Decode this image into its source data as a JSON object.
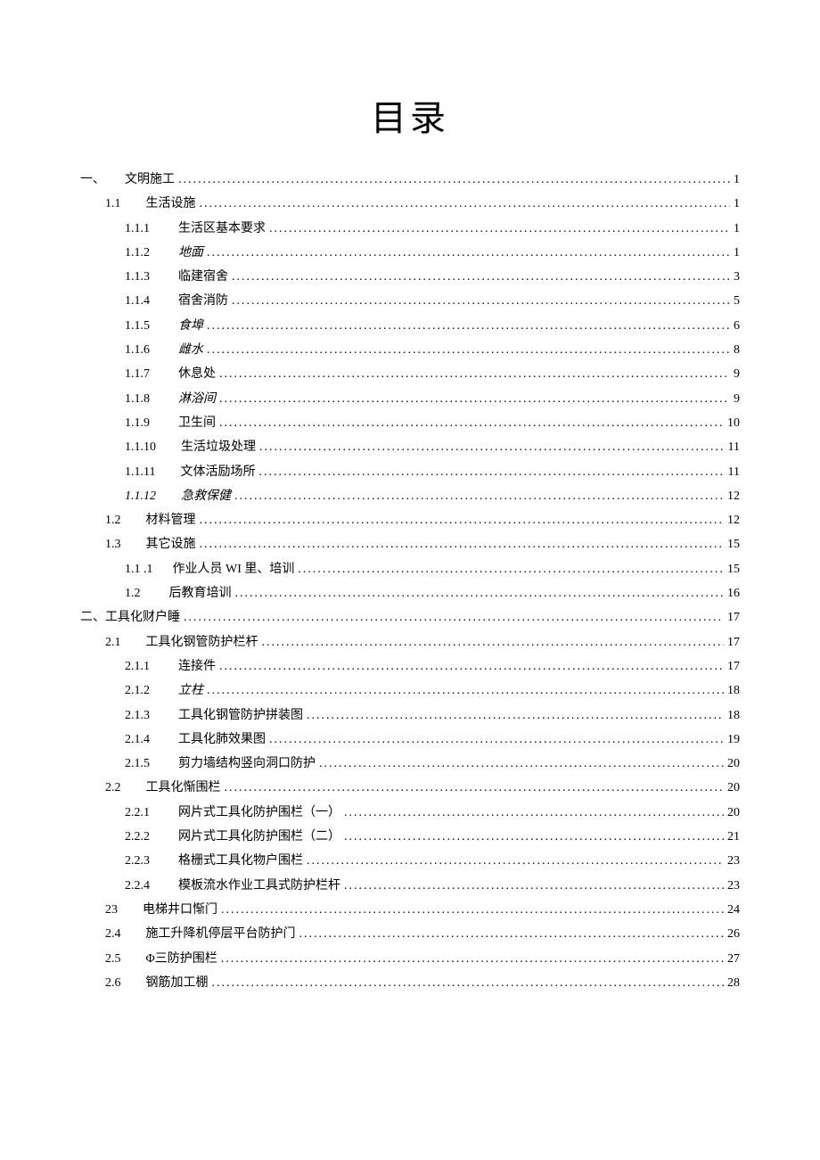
{
  "title": "目录",
  "dots": "...................................................................................................................................................",
  "entries": [
    {
      "indent": 0,
      "num": "一、",
      "numGap": "sm",
      "text": "文明施工",
      "page": "1",
      "italic": false,
      "textItalic": false
    },
    {
      "indent": 1,
      "num": "1.1",
      "numGap": "md",
      "text": "生活设施",
      "page": "1",
      "italic": false,
      "textItalic": false
    },
    {
      "indent": 2,
      "num": "1.1.1",
      "numGap": "lg",
      "text": "生活区基本要求",
      "page": "1",
      "italic": false,
      "textItalic": false
    },
    {
      "indent": 2,
      "num": "1.1.2",
      "numGap": "lg",
      "text": "地面",
      "page": "1",
      "italic": false,
      "textItalic": true
    },
    {
      "indent": 2,
      "num": "1.1.3",
      "numGap": "lg",
      "text": "临建宿舍",
      "page": "3",
      "italic": false,
      "textItalic": false
    },
    {
      "indent": 2,
      "num": "1.1.4",
      "numGap": "lg",
      "text": "宿舍消防",
      "page": "5",
      "italic": false,
      "textItalic": false
    },
    {
      "indent": 2,
      "num": "1.1.5",
      "numGap": "lg",
      "text": "食埠",
      "page": "6",
      "italic": false,
      "textItalic": true
    },
    {
      "indent": 2,
      "num": "1.1.6",
      "numGap": "lg",
      "text": "雌水",
      "page": "8",
      "italic": false,
      "textItalic": true
    },
    {
      "indent": 2,
      "num": "1.1.7",
      "numGap": "lg",
      "text": "休息处",
      "page": "9",
      "italic": false,
      "textItalic": false
    },
    {
      "indent": 2,
      "num": "1.1.8",
      "numGap": "lg",
      "text": "淋浴间",
      "page": "9",
      "italic": false,
      "textItalic": true
    },
    {
      "indent": 2,
      "num": "1.1.9",
      "numGap": "lg",
      "text": "卫生间",
      "page": "10",
      "italic": false,
      "textItalic": false
    },
    {
      "indent": 2,
      "num": "1.1.10",
      "numGap": "md",
      "text": "生活垃圾处理",
      "page": "11",
      "italic": false,
      "textItalic": false
    },
    {
      "indent": 2,
      "num": "1.1.11",
      "numGap": "md",
      "text": "文体活励场所",
      "page": "11",
      "italic": false,
      "textItalic": false
    },
    {
      "indent": 2,
      "num": "1.1.12",
      "numGap": "md",
      "text": "急救保健",
      "page": "12",
      "italic": true,
      "textItalic": true
    },
    {
      "indent": 1,
      "num": "1.2",
      "numGap": "md",
      "text": "材料管理",
      "page": "12",
      "italic": false,
      "textItalic": false
    },
    {
      "indent": 1,
      "num": "1.3",
      "numGap": "md",
      "text": "其它设施",
      "page": "15",
      "italic": false,
      "textItalic": false
    },
    {
      "indent": 2,
      "num": "1.1   .1",
      "numGap": "sm",
      "text": "作业人员 WI 里、培训",
      "page": "15",
      "italic": false,
      "textItalic": false
    },
    {
      "indent": 2,
      "num": "1.2",
      "numGap": "lg",
      "text": " 后教育培训",
      "page": "16",
      "italic": false,
      "textItalic": false
    },
    {
      "indent": 0,
      "num": "二、",
      "numGap": "",
      "text": "工具化财户睡",
      "page": "17",
      "italic": false,
      "textItalic": false
    },
    {
      "indent": 1,
      "num": "2.1",
      "numGap": "md",
      "text": "工具化钢管防护栏杆",
      "page": "17",
      "italic": false,
      "textItalic": false
    },
    {
      "indent": 2,
      "num": "2.1.1",
      "numGap": "lg",
      "text": "连接件",
      "page": "17",
      "italic": false,
      "textItalic": false
    },
    {
      "indent": 2,
      "num": "2.1.2",
      "numGap": "lg",
      "text": "立柱",
      "page": "18",
      "italic": false,
      "textItalic": true
    },
    {
      "indent": 2,
      "num": "2.1.3",
      "numGap": "lg",
      "text": "工具化钢管防护拼装图",
      "page": "18",
      "italic": false,
      "textItalic": false
    },
    {
      "indent": 2,
      "num": "2.1.4",
      "numGap": "lg",
      "text": "工具化肺效果图",
      "page": "19",
      "italic": false,
      "textItalic": false
    },
    {
      "indent": 2,
      "num": "2.1.5",
      "numGap": "lg",
      "text": "剪力墙结构竖向洞口防护",
      "page": "20",
      "italic": false,
      "textItalic": false
    },
    {
      "indent": 1,
      "num": "2.2",
      "numGap": "md",
      "text": "工具化惭围栏",
      "page": "20",
      "italic": false,
      "textItalic": false
    },
    {
      "indent": 2,
      "num": "2.2.1",
      "numGap": "lg",
      "text": "网片式工具化防护围栏（一）",
      "page": "20",
      "italic": false,
      "textItalic": false
    },
    {
      "indent": 2,
      "num": "2.2.2",
      "numGap": "lg",
      "text": "网片式工具化防护围栏（二）",
      "page": "21",
      "italic": false,
      "textItalic": false
    },
    {
      "indent": 2,
      "num": "2.2.3",
      "numGap": "lg",
      "text": "格栅式工具化物户围栏",
      "page": "23",
      "italic": false,
      "textItalic": false
    },
    {
      "indent": 2,
      "num": "2.2.4",
      "numGap": "lg",
      "text": "模板流水作业工具式防护栏杆",
      "page": "23",
      "italic": false,
      "textItalic": false
    },
    {
      "indent": 1,
      "num": "23",
      "numGap": "md",
      "text": " 电梯井口惭门",
      "page": "24",
      "italic": false,
      "textItalic": false
    },
    {
      "indent": 1,
      "num": "2.4",
      "numGap": "md",
      "text": "施工升降机停层平台防护门",
      "page": "26",
      "italic": false,
      "textItalic": false
    },
    {
      "indent": 1,
      "num": "2.5",
      "numGap": "md",
      "text": "Φ三防护围栏",
      "page": "27",
      "italic": false,
      "textItalic": false
    },
    {
      "indent": 1,
      "num": "2.6",
      "numGap": "md",
      "text": "钢筋加工棚",
      "page": "28",
      "italic": false,
      "textItalic": false
    }
  ]
}
